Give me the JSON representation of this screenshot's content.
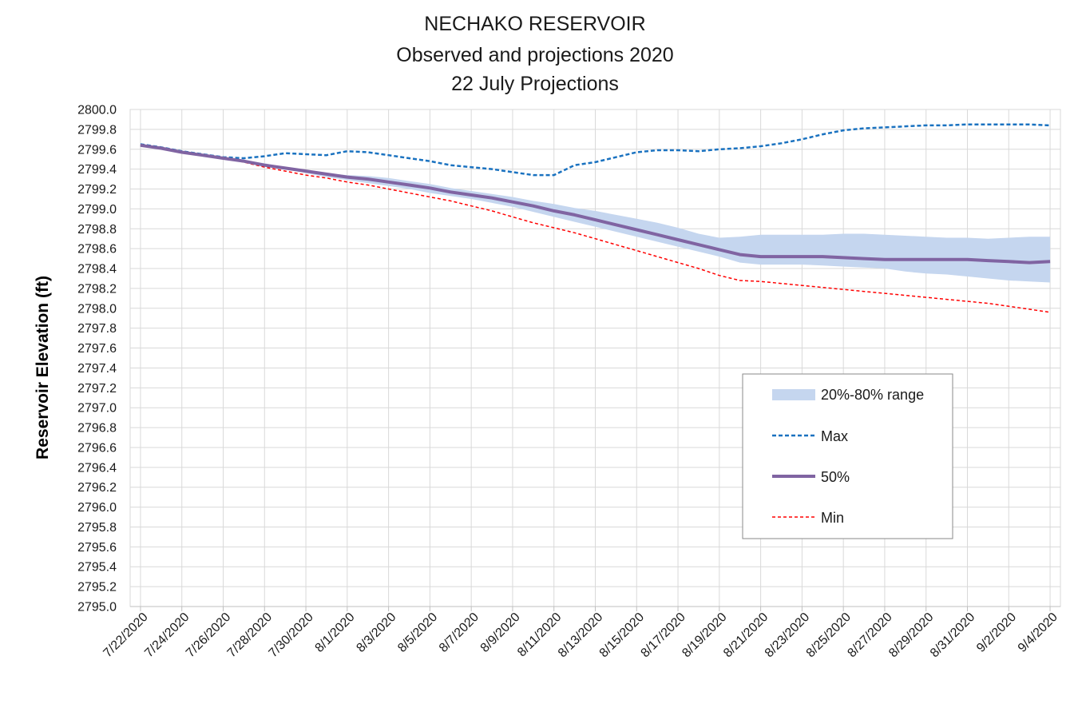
{
  "chart_data": {
    "type": "line",
    "title_lines": [
      "NECHAKO RESERVOIR",
      "Observed and projections 2020",
      "22 July Projections"
    ],
    "xlabel": "",
    "ylabel": "Reservoir Elevation (ft)",
    "ylim": [
      2795.0,
      2800.0
    ],
    "ytick_step": 0.2,
    "grid": true,
    "legend_position": "lower-right",
    "x_tick_labels": [
      "7/22/2020",
      "7/24/2020",
      "7/26/2020",
      "7/28/2020",
      "7/30/2020",
      "8/1/2020",
      "8/3/2020",
      "8/5/2020",
      "8/7/2020",
      "8/9/2020",
      "8/11/2020",
      "8/13/2020",
      "8/15/2020",
      "8/17/2020",
      "8/19/2020",
      "8/21/2020",
      "8/23/2020",
      "8/25/2020",
      "8/27/2020",
      "8/29/2020",
      "8/31/2020",
      "9/2/2020",
      "9/4/2020"
    ],
    "x": [
      "7/22/2020",
      "7/23/2020",
      "7/24/2020",
      "7/25/2020",
      "7/26/2020",
      "7/27/2020",
      "7/28/2020",
      "7/29/2020",
      "7/30/2020",
      "7/31/2020",
      "8/1/2020",
      "8/2/2020",
      "8/3/2020",
      "8/4/2020",
      "8/5/2020",
      "8/6/2020",
      "8/7/2020",
      "8/8/2020",
      "8/9/2020",
      "8/10/2020",
      "8/11/2020",
      "8/12/2020",
      "8/13/2020",
      "8/14/2020",
      "8/15/2020",
      "8/16/2020",
      "8/17/2020",
      "8/18/2020",
      "8/19/2020",
      "8/20/2020",
      "8/21/2020",
      "8/22/2020",
      "8/23/2020",
      "8/24/2020",
      "8/25/2020",
      "8/26/2020",
      "8/27/2020",
      "8/28/2020",
      "8/29/2020",
      "8/30/2020",
      "8/31/2020",
      "9/1/2020",
      "9/2/2020",
      "9/3/2020",
      "9/4/2020"
    ],
    "band": {
      "name": "20%-80% range",
      "color": "#c5d6ef",
      "lower": [
        2799.64,
        2799.61,
        2799.57,
        2799.54,
        2799.51,
        2799.48,
        2799.44,
        2799.4,
        2799.36,
        2799.32,
        2799.29,
        2799.26,
        2799.23,
        2799.2,
        2799.16,
        2799.13,
        2799.1,
        2799.06,
        2799.02,
        2798.97,
        2798.92,
        2798.87,
        2798.82,
        2798.77,
        2798.72,
        2798.67,
        2798.62,
        2798.57,
        2798.52,
        2798.46,
        2798.44,
        2798.44,
        2798.44,
        2798.43,
        2798.42,
        2798.41,
        2798.4,
        2798.37,
        2798.35,
        2798.34,
        2798.32,
        2798.3,
        2798.28,
        2798.27,
        2798.26
      ],
      "upper": [
        2799.65,
        2799.62,
        2799.58,
        2799.55,
        2799.52,
        2799.49,
        2799.46,
        2799.42,
        2799.39,
        2799.36,
        2799.34,
        2799.33,
        2799.31,
        2799.28,
        2799.25,
        2799.21,
        2799.18,
        2799.15,
        2799.12,
        2799.08,
        2799.05,
        2799.01,
        2798.98,
        2798.94,
        2798.9,
        2798.86,
        2798.81,
        2798.75,
        2798.71,
        2798.72,
        2798.74,
        2798.74,
        2798.74,
        2798.74,
        2798.75,
        2798.75,
        2798.74,
        2798.73,
        2798.72,
        2798.71,
        2798.71,
        2798.7,
        2798.71,
        2798.72,
        2798.72
      ]
    },
    "series": [
      {
        "name": "Max",
        "color": "#1a72c0",
        "style": "dashed",
        "values": [
          2799.65,
          2799.62,
          2799.58,
          2799.55,
          2799.52,
          2799.51,
          2799.53,
          2799.56,
          2799.55,
          2799.54,
          2799.58,
          2799.57,
          2799.54,
          2799.51,
          2799.48,
          2799.44,
          2799.42,
          2799.4,
          2799.37,
          2799.34,
          2799.34,
          2799.44,
          2799.47,
          2799.52,
          2799.57,
          2799.59,
          2799.59,
          2799.58,
          2799.6,
          2799.61,
          2799.63,
          2799.66,
          2799.7,
          2799.75,
          2799.79,
          2799.81,
          2799.82,
          2799.83,
          2799.84,
          2799.84,
          2799.85,
          2799.85,
          2799.85,
          2799.85,
          2799.84
        ]
      },
      {
        "name": "50%",
        "color": "#8064a2",
        "style": "solid",
        "values": [
          2799.64,
          2799.61,
          2799.57,
          2799.54,
          2799.51,
          2799.48,
          2799.44,
          2799.41,
          2799.38,
          2799.35,
          2799.32,
          2799.3,
          2799.27,
          2799.24,
          2799.21,
          2799.17,
          2799.14,
          2799.11,
          2799.07,
          2799.03,
          2798.98,
          2798.94,
          2798.89,
          2798.84,
          2798.79,
          2798.74,
          2798.69,
          2798.64,
          2798.59,
          2798.54,
          2798.52,
          2798.52,
          2798.52,
          2798.52,
          2798.51,
          2798.5,
          2798.49,
          2798.49,
          2798.49,
          2798.49,
          2798.49,
          2798.48,
          2798.47,
          2798.46,
          2798.47
        ]
      },
      {
        "name": "Min",
        "color": "#ff0000",
        "style": "dashed",
        "values": [
          2799.64,
          2799.61,
          2799.57,
          2799.54,
          2799.51,
          2799.47,
          2799.42,
          2799.38,
          2799.34,
          2799.31,
          2799.27,
          2799.24,
          2799.2,
          2799.16,
          2799.12,
          2799.08,
          2799.03,
          2798.98,
          2798.92,
          2798.86,
          2798.81,
          2798.76,
          2798.7,
          2798.64,
          2798.58,
          2798.52,
          2798.46,
          2798.4,
          2798.33,
          2798.28,
          2798.27,
          2798.25,
          2798.23,
          2798.21,
          2798.19,
          2798.17,
          2798.15,
          2798.13,
          2798.11,
          2798.09,
          2798.07,
          2798.05,
          2798.02,
          2797.99,
          2797.96
        ]
      }
    ]
  }
}
